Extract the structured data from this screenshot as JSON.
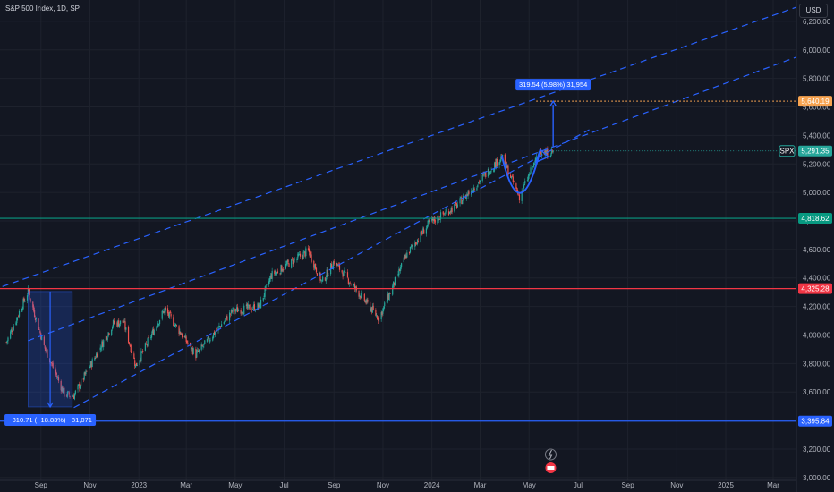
{
  "header": {
    "title": "S&P 500 Index, 1D, SP"
  },
  "currency": "USD",
  "colors": {
    "background": "#131722",
    "up": "#26a69a",
    "down": "#ef5350",
    "trend": "#2962ff",
    "support_low": "#2962ff",
    "resistance_mid": "#f23645",
    "green_level": "#089981",
    "target": "#f7a350"
  },
  "chart_data": {
    "type": "candlestick",
    "title": "S&P 500 Index, 1D, SP",
    "y_axis": {
      "ticks": [
        "3,000.00",
        "3,200.00",
        "3,400.00",
        "3,600.00",
        "3,800.00",
        "4,000.00",
        "4,200.00",
        "4,400.00",
        "4,600.00",
        "4,800.00",
        "5,000.00",
        "5,200.00",
        "5,400.00",
        "5,600.00",
        "5,800.00",
        "6,000.00",
        "6,200.00"
      ],
      "values": [
        3000,
        3200,
        3400,
        3600,
        3800,
        4000,
        4200,
        4400,
        4600,
        4800,
        5000,
        5200,
        5400,
        5600,
        5800,
        6000,
        6200
      ],
      "range": [
        2980,
        6300
      ]
    },
    "x_axis": {
      "ticks": [
        "Sep",
        "Nov",
        "2023",
        "Mar",
        "May",
        "Jul",
        "Sep",
        "Nov",
        "2024",
        "Mar",
        "May",
        "Jul",
        "Sep",
        "Nov",
        "2025",
        "Mar"
      ],
      "dates": [
        "2022-09-01",
        "2022-11-01",
        "2023-01-01",
        "2023-03-01",
        "2023-05-01",
        "2023-07-01",
        "2023-09-01",
        "2023-11-01",
        "2024-01-01",
        "2024-03-01",
        "2024-05-01",
        "2024-07-01",
        "2024-09-01",
        "2024-11-01",
        "2025-01-01",
        "2025-03-01"
      ]
    },
    "price_path": [
      [
        "2022-07-20",
        3950
      ],
      [
        "2022-08-16",
        4305
      ],
      [
        "2022-09-05",
        3920
      ],
      [
        "2022-09-30",
        3585
      ],
      [
        "2022-10-12",
        3575
      ],
      [
        "2022-11-30",
        4080
      ],
      [
        "2022-12-13",
        4090
      ],
      [
        "2022-12-28",
        3785
      ],
      [
        "2023-02-02",
        4180
      ],
      [
        "2023-03-13",
        3860
      ],
      [
        "2023-04-28",
        4170
      ],
      [
        "2023-05-31",
        4200
      ],
      [
        "2023-06-15",
        4420
      ],
      [
        "2023-07-31",
        4590
      ],
      [
        "2023-08-17",
        4370
      ],
      [
        "2023-09-01",
        4515
      ],
      [
        "2023-10-27",
        4115
      ],
      [
        "2023-11-30",
        4560
      ],
      [
        "2023-12-28",
        4780
      ],
      [
        "2024-02-01",
        4910
      ],
      [
        "2024-03-28",
        5250
      ],
      [
        "2024-04-19",
        4970
      ],
      [
        "2024-05-15",
        5300
      ],
      [
        "2024-05-23",
        5270
      ],
      [
        "2024-05-31",
        5291.35
      ]
    ],
    "levels": [
      {
        "label": "5,640.19",
        "value": 5640.19,
        "style": "dotted",
        "color": "#f7a350"
      },
      {
        "label": "4,818.62",
        "value": 4818.62,
        "style": "solid",
        "color": "#089981"
      },
      {
        "label": "4,325.28",
        "value": 4325.28,
        "style": "solid",
        "color": "#f23645"
      },
      {
        "label": "3,395.84",
        "value": 3395.84,
        "style": "solid",
        "color": "#2962ff"
      }
    ],
    "last_price": {
      "symbol": "SPX",
      "value": "5,291.35"
    },
    "channel": {
      "lower": [
        [
          "2022-10-12",
          3490
        ],
        [
          "2024-07-15",
          5440
        ]
      ],
      "middle": [
        [
          "2022-08-16",
          3960
        ],
        [
          "2025-03-30",
          5950
        ]
      ],
      "upper": [
        [
          "2022-07-15",
          4340
        ],
        [
          "2025-03-30",
          6300
        ]
      ]
    },
    "annotations": [
      {
        "text": "319.54 (5.98%) 31,954",
        "from": 5320,
        "to": 5640.19,
        "date": "2024-05-31"
      },
      {
        "text": "−810.71 (−18.83%) −81,071",
        "from": 4305,
        "to": 3495,
        "date_start": "2022-08-16",
        "date_end": "2022-10-10"
      }
    ],
    "cup_pattern": {
      "start": [
        "2024-03-28",
        5260
      ],
      "bottom": [
        "2024-04-22",
        4890
      ],
      "end": [
        "2024-05-15",
        5300
      ]
    }
  }
}
